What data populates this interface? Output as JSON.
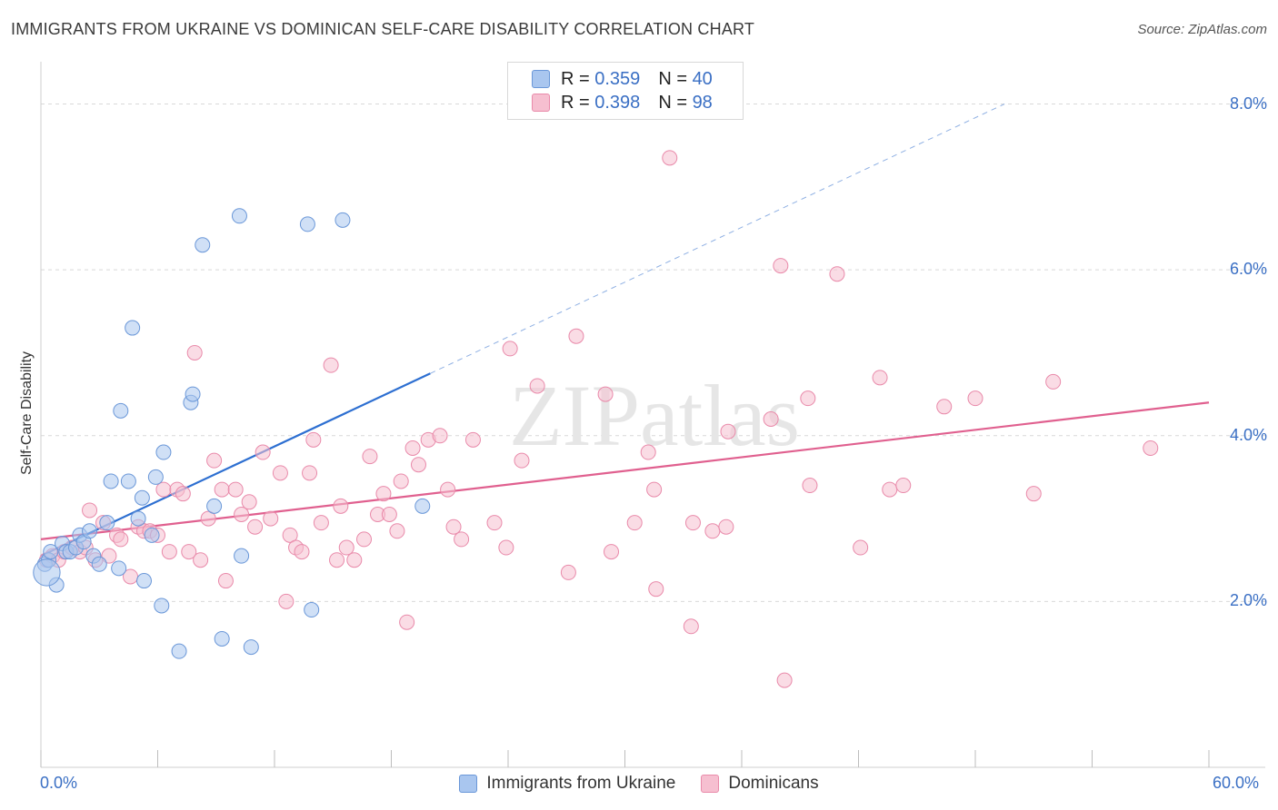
{
  "title": "IMMIGRANTS FROM UKRAINE VS DOMINICAN SELF-CARE DISABILITY CORRELATION CHART",
  "source": "Source: ZipAtlas.com",
  "watermark": "ZIPatlas",
  "colors": {
    "blue_fill": "#a9c6ef",
    "blue_stroke": "#6a97d8",
    "blue_line": "#2d6fd1",
    "pink_fill": "#f6bfd0",
    "pink_stroke": "#e98aaa",
    "pink_line": "#e0608f",
    "axis_text": "#3a6fc4",
    "grid": "#d9d9d9"
  },
  "legend_top": [
    {
      "r_label": "R =",
      "r_value": "0.359",
      "n_label": "N =",
      "n_value": "40"
    },
    {
      "r_label": "R =",
      "r_value": "0.398",
      "n_label": "N =",
      "n_value": "98"
    }
  ],
  "chart_data": {
    "type": "scatter",
    "title": "IMMIGRANTS FROM UKRAINE VS DOMINICAN SELF-CARE DISABILITY CORRELATION CHART",
    "xlabel": "",
    "ylabel": "Self-Care Disability",
    "xlim": [
      0,
      60
    ],
    "ylim": [
      0,
      8.4
    ],
    "x_tick_labels": [
      "0.0%",
      "60.0%"
    ],
    "y_ticks": [
      2,
      4,
      6,
      8
    ],
    "y_tick_labels": [
      "2.0%",
      "4.0%",
      "6.0%",
      "8.0%"
    ],
    "grid": true,
    "legend_position": "bottom",
    "series": [
      {
        "name": "Immigrants from Ukraine",
        "color": "blue",
        "trend": {
          "x0": 0,
          "y0": 2.55,
          "x1": 20,
          "y1": 4.75,
          "dashed_to_x": 49.5,
          "dashed_to_y": 8.0
        },
        "points": [
          [
            0.2,
            2.45
          ],
          [
            0.4,
            2.5
          ],
          [
            0.5,
            2.6
          ],
          [
            0.8,
            2.2
          ],
          [
            1.1,
            2.7
          ],
          [
            1.3,
            2.6
          ],
          [
            1.5,
            2.6
          ],
          [
            1.8,
            2.65
          ],
          [
            2.0,
            2.8
          ],
          [
            2.2,
            2.72
          ],
          [
            2.5,
            2.85
          ],
          [
            2.7,
            2.55
          ],
          [
            3.0,
            2.45
          ],
          [
            3.4,
            2.95
          ],
          [
            3.6,
            3.45
          ],
          [
            4.0,
            2.4
          ],
          [
            4.1,
            4.3
          ],
          [
            4.5,
            3.45
          ],
          [
            4.7,
            5.3
          ],
          [
            5.0,
            3.0
          ],
          [
            5.2,
            3.25
          ],
          [
            5.3,
            2.25
          ],
          [
            5.7,
            2.8
          ],
          [
            5.9,
            3.5
          ],
          [
            6.2,
            1.95
          ],
          [
            6.3,
            3.8
          ],
          [
            7.1,
            1.4
          ],
          [
            7.7,
            4.4
          ],
          [
            7.8,
            4.5
          ],
          [
            8.3,
            6.3
          ],
          [
            8.9,
            3.15
          ],
          [
            9.3,
            1.55
          ],
          [
            10.2,
            6.65
          ],
          [
            10.3,
            2.55
          ],
          [
            10.8,
            1.45
          ],
          [
            13.7,
            6.55
          ],
          [
            13.9,
            1.9
          ],
          [
            15.5,
            6.6
          ],
          [
            19.6,
            3.15
          ],
          [
            0.3,
            2.35
          ]
        ],
        "point_sizes": [
          12,
          12,
          12,
          12,
          12,
          12,
          12,
          12,
          12,
          12,
          12,
          12,
          12,
          12,
          12,
          12,
          12,
          12,
          12,
          12,
          12,
          12,
          12,
          12,
          12,
          12,
          12,
          12,
          12,
          12,
          12,
          12,
          12,
          12,
          12,
          12,
          12,
          12,
          12,
          22
        ]
      },
      {
        "name": "Dominicans",
        "color": "pink",
        "trend": {
          "x0": 0,
          "y0": 2.75,
          "x1": 60,
          "y1": 4.4
        },
        "points": [
          [
            0.3,
            2.5
          ],
          [
            0.6,
            2.55
          ],
          [
            0.9,
            2.5
          ],
          [
            1.2,
            2.6
          ],
          [
            1.6,
            2.65
          ],
          [
            2.0,
            2.6
          ],
          [
            2.3,
            2.65
          ],
          [
            2.5,
            3.1
          ],
          [
            2.8,
            2.5
          ],
          [
            3.2,
            2.95
          ],
          [
            3.5,
            2.55
          ],
          [
            3.9,
            2.8
          ],
          [
            4.1,
            2.75
          ],
          [
            4.6,
            2.3
          ],
          [
            5.0,
            2.9
          ],
          [
            5.3,
            2.85
          ],
          [
            5.6,
            2.85
          ],
          [
            6.0,
            2.8
          ],
          [
            6.3,
            3.35
          ],
          [
            6.6,
            2.6
          ],
          [
            7.0,
            3.35
          ],
          [
            7.3,
            3.3
          ],
          [
            7.6,
            2.6
          ],
          [
            7.9,
            5.0
          ],
          [
            8.2,
            2.5
          ],
          [
            8.6,
            3.0
          ],
          [
            8.9,
            3.7
          ],
          [
            9.3,
            3.35
          ],
          [
            9.5,
            2.25
          ],
          [
            10.0,
            3.35
          ],
          [
            10.3,
            3.05
          ],
          [
            10.7,
            3.2
          ],
          [
            11.0,
            2.9
          ],
          [
            11.4,
            3.8
          ],
          [
            11.8,
            3.0
          ],
          [
            12.3,
            3.55
          ],
          [
            12.6,
            2.0
          ],
          [
            12.8,
            2.8
          ],
          [
            13.1,
            2.65
          ],
          [
            13.4,
            2.6
          ],
          [
            13.8,
            3.55
          ],
          [
            14.0,
            3.95
          ],
          [
            14.4,
            2.95
          ],
          [
            14.9,
            4.85
          ],
          [
            15.2,
            2.5
          ],
          [
            15.4,
            3.15
          ],
          [
            15.7,
            2.65
          ],
          [
            16.1,
            2.5
          ],
          [
            16.6,
            2.75
          ],
          [
            16.9,
            3.75
          ],
          [
            17.3,
            3.05
          ],
          [
            17.6,
            3.3
          ],
          [
            17.9,
            3.05
          ],
          [
            18.3,
            2.85
          ],
          [
            18.5,
            3.45
          ],
          [
            18.8,
            1.75
          ],
          [
            19.1,
            3.85
          ],
          [
            19.4,
            3.65
          ],
          [
            19.9,
            3.95
          ],
          [
            20.5,
            4.0
          ],
          [
            20.9,
            3.35
          ],
          [
            21.2,
            2.9
          ],
          [
            21.6,
            2.75
          ],
          [
            22.2,
            3.95
          ],
          [
            23.3,
            2.95
          ],
          [
            23.9,
            2.65
          ],
          [
            24.1,
            5.05
          ],
          [
            24.7,
            3.7
          ],
          [
            25.5,
            4.6
          ],
          [
            27.1,
            2.35
          ],
          [
            27.5,
            5.2
          ],
          [
            29.0,
            4.5
          ],
          [
            29.3,
            2.6
          ],
          [
            30.5,
            2.95
          ],
          [
            31.2,
            3.8
          ],
          [
            31.5,
            3.35
          ],
          [
            31.6,
            2.15
          ],
          [
            32.3,
            7.35
          ],
          [
            33.4,
            1.7
          ],
          [
            33.5,
            2.95
          ],
          [
            34.5,
            2.85
          ],
          [
            35.2,
            2.9
          ],
          [
            35.3,
            4.05
          ],
          [
            37.5,
            4.2
          ],
          [
            38.0,
            6.05
          ],
          [
            38.2,
            1.05
          ],
          [
            39.4,
            4.45
          ],
          [
            39.5,
            3.4
          ],
          [
            40.9,
            5.95
          ],
          [
            42.1,
            2.65
          ],
          [
            43.1,
            4.7
          ],
          [
            43.6,
            3.35
          ],
          [
            44.3,
            3.4
          ],
          [
            46.4,
            4.35
          ],
          [
            48.0,
            4.45
          ],
          [
            51.0,
            3.3
          ],
          [
            52.0,
            4.65
          ],
          [
            57.0,
            3.85
          ]
        ]
      }
    ]
  },
  "bottom_legend": [
    "Immigrants from Ukraine",
    "Dominicans"
  ]
}
